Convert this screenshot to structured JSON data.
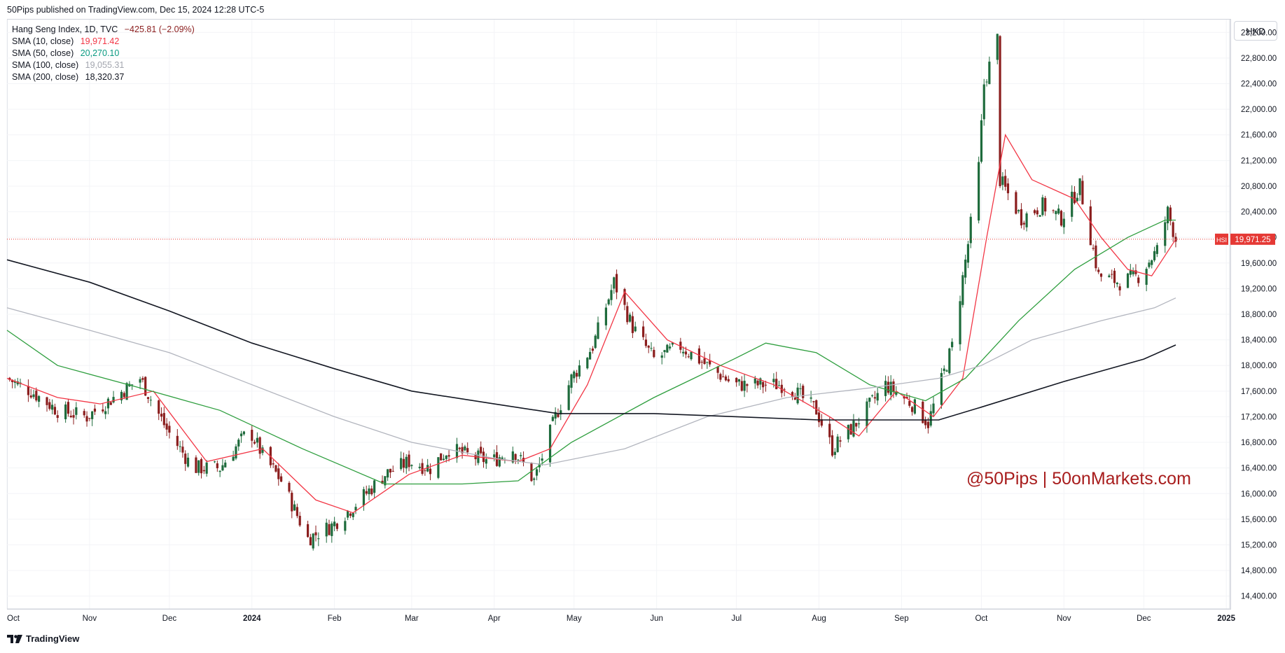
{
  "header": {
    "publisher_line": "50Pips published on TradingView.com, Dec 15, 2024 12:28 UTC-5"
  },
  "legend": {
    "symbol_line": "Hang Seng Index, 1D, TVC",
    "change": "−425.81 (−2.09%)",
    "items": [
      {
        "label": "SMA (10, close)",
        "value": "19,971.42",
        "color": "#f23645"
      },
      {
        "label": "SMA (50, close)",
        "value": "20,270.10",
        "color": "#089981"
      },
      {
        "label": "SMA (100, close)",
        "value": "19,055.31",
        "color": "#a3a6af"
      },
      {
        "label": "SMA (200, close)",
        "value": "18,320.37",
        "color": "#131722"
      }
    ]
  },
  "currency_button": "HKD",
  "watermark": "@50Pips  |  50onMarkets.com",
  "footer": {
    "brand": "TradingView"
  },
  "colors": {
    "up": "#1e6b3c",
    "down": "#8b1e1e",
    "price_line": "#e53935",
    "grid": "#f0f3fa"
  },
  "chart_data": {
    "type": "candlestick",
    "instrument": "HSI",
    "last_price": 19971.25,
    "last_price_label": "19,971.25",
    "y_range": [
      14200,
      23400
    ],
    "y_ticks": [
      14400,
      14800,
      15200,
      15600,
      16000,
      16400,
      16800,
      17200,
      17600,
      18000,
      18400,
      18800,
      19200,
      19600,
      20000,
      20400,
      20800,
      21200,
      21600,
      22000,
      22400,
      22800,
      23200
    ],
    "y_tick_labels": [
      "14,400.00",
      "14,800.00",
      "15,200.00",
      "15,600.00",
      "16,000.00",
      "16,400.00",
      "16,800.00",
      "17,200.00",
      "17,600.00",
      "18,000.00",
      "18,400.00",
      "18,800.00",
      "19,200.00",
      "19,600.00",
      "20,000.00",
      "20,400.00",
      "20,800.00",
      "21,200.00",
      "21,600.00",
      "22,000.00",
      "22,400.00",
      "22,800.00",
      "23,200.00"
    ],
    "x_labels": [
      {
        "label": "Oct",
        "date": "2023-10-01",
        "bold": false
      },
      {
        "label": "Nov",
        "date": "2023-11-01",
        "bold": false
      },
      {
        "label": "Dec",
        "date": "2023-12-01",
        "bold": false
      },
      {
        "label": "2024",
        "date": "2024-01-01",
        "bold": true
      },
      {
        "label": "Feb",
        "date": "2024-02-01",
        "bold": false
      },
      {
        "label": "Mar",
        "date": "2024-03-01",
        "bold": false
      },
      {
        "label": "Apr",
        "date": "2024-04-01",
        "bold": false
      },
      {
        "label": "May",
        "date": "2024-05-01",
        "bold": false
      },
      {
        "label": "Jun",
        "date": "2024-06-01",
        "bold": false
      },
      {
        "label": "Jul",
        "date": "2024-07-01",
        "bold": false
      },
      {
        "label": "Aug",
        "date": "2024-08-01",
        "bold": false
      },
      {
        "label": "Sep",
        "date": "2024-09-01",
        "bold": false
      },
      {
        "label": "Oct",
        "date": "2024-10-01",
        "bold": false
      },
      {
        "label": "Nov",
        "date": "2024-11-01",
        "bold": false
      },
      {
        "label": "Dec",
        "date": "2024-12-01",
        "bold": false
      },
      {
        "label": "2025",
        "date": "2025-01-01",
        "bold": true
      }
    ],
    "x_range": [
      "2023-10-01",
      "2025-01-02"
    ],
    "close_path": [
      [
        "2023-10-01",
        17800
      ],
      [
        "2023-10-10",
        17600
      ],
      [
        "2023-10-20",
        17300
      ],
      [
        "2023-10-31",
        17200
      ],
      [
        "2023-11-10",
        17500
      ],
      [
        "2023-11-20",
        17800
      ],
      [
        "2023-11-30",
        17000
      ],
      [
        "2023-12-10",
        16400
      ],
      [
        "2023-12-20",
        16400
      ],
      [
        "2023-12-31",
        17000
      ],
      [
        "2024-01-05",
        16600
      ],
      [
        "2024-01-12",
        16200
      ],
      [
        "2024-01-22",
        15300
      ],
      [
        "2024-01-31",
        15500
      ],
      [
        "2024-02-08",
        15800
      ],
      [
        "2024-02-20",
        16300
      ],
      [
        "2024-02-29",
        16500
      ],
      [
        "2024-03-08",
        16400
      ],
      [
        "2024-03-15",
        16700
      ],
      [
        "2024-03-22",
        16600
      ],
      [
        "2024-03-31",
        16500
      ],
      [
        "2024-04-08",
        16700
      ],
      [
        "2024-04-16",
        16200
      ],
      [
        "2024-04-24",
        17200
      ],
      [
        "2024-04-30",
        17800
      ],
      [
        "2024-05-08",
        18300
      ],
      [
        "2024-05-16",
        19300
      ],
      [
        "2024-05-23",
        18600
      ],
      [
        "2024-05-31",
        18100
      ],
      [
        "2024-06-10",
        18300
      ],
      [
        "2024-06-20",
        18000
      ],
      [
        "2024-06-30",
        17700
      ],
      [
        "2024-07-10",
        17700
      ],
      [
        "2024-07-20",
        17700
      ],
      [
        "2024-07-31",
        17300
      ],
      [
        "2024-08-06",
        16700
      ],
      [
        "2024-08-15",
        17100
      ],
      [
        "2024-08-26",
        17700
      ],
      [
        "2024-09-05",
        17400
      ],
      [
        "2024-09-11",
        17100
      ],
      [
        "2024-09-20",
        18300
      ],
      [
        "2024-09-26",
        19900
      ],
      [
        "2024-09-30",
        21100
      ],
      [
        "2024-10-02",
        22400
      ],
      [
        "2024-10-07",
        23100
      ],
      [
        "2024-10-08",
        20900
      ],
      [
        "2024-10-16",
        20300
      ],
      [
        "2024-10-24",
        20500
      ],
      [
        "2024-10-31",
        20300
      ],
      [
        "2024-11-07",
        20800
      ],
      [
        "2024-11-14",
        19400
      ],
      [
        "2024-11-22",
        19300
      ],
      [
        "2024-11-29",
        19400
      ],
      [
        "2024-12-06",
        19800
      ],
      [
        "2024-12-10",
        20400
      ],
      [
        "2024-12-13",
        19971
      ]
    ],
    "sma_paths": {
      "sma10": [
        [
          "2023-10-01",
          17800
        ],
        [
          "2023-10-20",
          17500
        ],
        [
          "2023-11-05",
          17400
        ],
        [
          "2023-11-25",
          17600
        ],
        [
          "2023-12-15",
          16500
        ],
        [
          "2024-01-05",
          16700
        ],
        [
          "2024-01-25",
          15900
        ],
        [
          "2024-02-08",
          15700
        ],
        [
          "2024-02-29",
          16300
        ],
        [
          "2024-03-20",
          16600
        ],
        [
          "2024-04-10",
          16500
        ],
        [
          "2024-04-22",
          16700
        ],
        [
          "2024-05-06",
          17700
        ],
        [
          "2024-05-20",
          19150
        ],
        [
          "2024-06-05",
          18400
        ],
        [
          "2024-06-25",
          18000
        ],
        [
          "2024-07-15",
          17700
        ],
        [
          "2024-08-05",
          17200
        ],
        [
          "2024-08-16",
          16900
        ],
        [
          "2024-08-30",
          17600
        ],
        [
          "2024-09-13",
          17200
        ],
        [
          "2024-09-24",
          17800
        ],
        [
          "2024-10-03",
          20000
        ],
        [
          "2024-10-10",
          21600
        ],
        [
          "2024-10-20",
          20900
        ],
        [
          "2024-11-05",
          20600
        ],
        [
          "2024-11-15",
          20000
        ],
        [
          "2024-11-25",
          19500
        ],
        [
          "2024-12-04",
          19400
        ],
        [
          "2024-12-13",
          19971
        ]
      ],
      "sma50": [
        [
          "2023-10-01",
          18550
        ],
        [
          "2023-10-20",
          18000
        ],
        [
          "2023-11-20",
          17650
        ],
        [
          "2023-12-20",
          17300
        ],
        [
          "2024-01-20",
          16700
        ],
        [
          "2024-02-20",
          16150
        ],
        [
          "2024-03-20",
          16150
        ],
        [
          "2024-04-10",
          16200
        ],
        [
          "2024-04-30",
          16800
        ],
        [
          "2024-05-31",
          17500
        ],
        [
          "2024-06-30",
          18100
        ],
        [
          "2024-07-12",
          18350
        ],
        [
          "2024-07-31",
          18200
        ],
        [
          "2024-08-20",
          17700
        ],
        [
          "2024-09-10",
          17450
        ],
        [
          "2024-09-25",
          17800
        ],
        [
          "2024-10-15",
          18700
        ],
        [
          "2024-11-05",
          19500
        ],
        [
          "2024-11-25",
          20000
        ],
        [
          "2024-12-09",
          20270
        ],
        [
          "2024-12-13",
          20270
        ]
      ],
      "sma100": [
        [
          "2023-10-01",
          18900
        ],
        [
          "2023-11-01",
          18550
        ],
        [
          "2023-12-01",
          18200
        ],
        [
          "2024-01-01",
          17700
        ],
        [
          "2024-02-01",
          17200
        ],
        [
          "2024-03-01",
          16800
        ],
        [
          "2024-04-01",
          16550
        ],
        [
          "2024-04-20",
          16450
        ],
        [
          "2024-05-20",
          16700
        ],
        [
          "2024-06-20",
          17200
        ],
        [
          "2024-07-20",
          17500
        ],
        [
          "2024-08-20",
          17650
        ],
        [
          "2024-09-15",
          17800
        ],
        [
          "2024-10-01",
          18000
        ],
        [
          "2024-10-20",
          18400
        ],
        [
          "2024-11-15",
          18700
        ],
        [
          "2024-12-05",
          18900
        ],
        [
          "2024-12-13",
          19055
        ]
      ],
      "sma200": [
        [
          "2023-10-01",
          19650
        ],
        [
          "2023-11-01",
          19300
        ],
        [
          "2023-12-01",
          18850
        ],
        [
          "2024-01-01",
          18350
        ],
        [
          "2024-02-01",
          17950
        ],
        [
          "2024-03-01",
          17600
        ],
        [
          "2024-04-01",
          17400
        ],
        [
          "2024-04-25",
          17250
        ],
        [
          "2024-05-31",
          17250
        ],
        [
          "2024-07-01",
          17200
        ],
        [
          "2024-08-01",
          17150
        ],
        [
          "2024-09-15",
          17150
        ],
        [
          "2024-10-01",
          17350
        ],
        [
          "2024-11-01",
          17750
        ],
        [
          "2024-12-01",
          18100
        ],
        [
          "2024-12-13",
          18320
        ]
      ]
    },
    "grid": true
  }
}
